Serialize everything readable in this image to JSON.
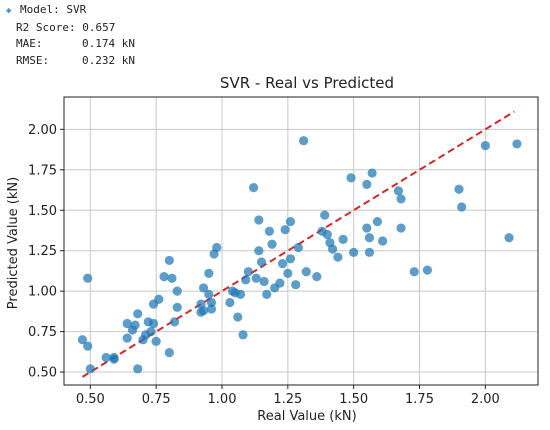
{
  "metrics": {
    "model_line": "Model: SVR",
    "r2_line": "R2 Score: 0.657",
    "mae_key": "MAE:",
    "mae_value": "0.174 kN",
    "rmse_key": "RMSE:",
    "rmse_value": "0.232 kN"
  },
  "colors": {
    "point": "#1f77b4",
    "reference_line": "#d62728",
    "grid": "#c8c8c8",
    "bullet": "#4a90d9"
  },
  "chart_data": {
    "type": "scatter",
    "title": "SVR - Real vs Predicted",
    "xlabel": "Real Value (kN)",
    "ylabel": "Predicted Value (kN)",
    "xlim": [
      0.4,
      2.2
    ],
    "ylim": [
      0.42,
      2.2
    ],
    "xticks": [
      "0.50",
      "0.75",
      "1.00",
      "1.25",
      "1.50",
      "1.75",
      "2.00"
    ],
    "yticks": [
      "0.50",
      "0.75",
      "1.00",
      "1.25",
      "1.50",
      "1.75",
      "2.00"
    ],
    "grid": true,
    "reference_line": {
      "style": "dashed",
      "from": [
        0.47,
        0.47
      ],
      "to": [
        2.11,
        2.11
      ]
    },
    "points": [
      [
        0.47,
        0.7
      ],
      [
        0.49,
        1.08
      ],
      [
        0.49,
        0.66
      ],
      [
        0.5,
        0.52
      ],
      [
        0.56,
        0.59
      ],
      [
        0.59,
        0.58
      ],
      [
        0.59,
        0.59
      ],
      [
        0.64,
        0.8
      ],
      [
        0.64,
        0.71
      ],
      [
        0.66,
        0.76
      ],
      [
        0.67,
        0.79
      ],
      [
        0.68,
        0.86
      ],
      [
        0.68,
        0.52
      ],
      [
        0.7,
        0.7
      ],
      [
        0.71,
        0.73
      ],
      [
        0.72,
        0.81
      ],
      [
        0.73,
        0.75
      ],
      [
        0.74,
        0.92
      ],
      [
        0.74,
        0.8
      ],
      [
        0.75,
        0.69
      ],
      [
        0.76,
        0.95
      ],
      [
        0.78,
        1.09
      ],
      [
        0.8,
        0.62
      ],
      [
        0.81,
        1.08
      ],
      [
        0.8,
        1.19
      ],
      [
        0.82,
        0.81
      ],
      [
        0.83,
        0.9
      ],
      [
        0.83,
        1.0
      ],
      [
        0.92,
        0.87
      ],
      [
        0.92,
        0.92
      ],
      [
        0.93,
        1.02
      ],
      [
        0.93,
        0.88
      ],
      [
        0.95,
        0.98
      ],
      [
        0.95,
        1.11
      ],
      [
        0.96,
        0.89
      ],
      [
        0.96,
        0.93
      ],
      [
        0.97,
        1.23
      ],
      [
        0.98,
        1.27
      ],
      [
        1.03,
        0.93
      ],
      [
        1.04,
        1.0
      ],
      [
        1.05,
        0.99
      ],
      [
        1.06,
        0.84
      ],
      [
        1.07,
        0.98
      ],
      [
        1.08,
        0.73
      ],
      [
        1.09,
        1.07
      ],
      [
        1.1,
        1.12
      ],
      [
        1.12,
        1.64
      ],
      [
        1.13,
        1.08
      ],
      [
        1.14,
        1.44
      ],
      [
        1.14,
        1.25
      ],
      [
        1.15,
        1.18
      ],
      [
        1.16,
        1.06
      ],
      [
        1.17,
        0.98
      ],
      [
        1.18,
        1.37
      ],
      [
        1.19,
        1.29
      ],
      [
        1.2,
        1.02
      ],
      [
        1.22,
        1.05
      ],
      [
        1.23,
        1.17
      ],
      [
        1.24,
        1.38
      ],
      [
        1.25,
        1.11
      ],
      [
        1.26,
        1.43
      ],
      [
        1.26,
        1.2
      ],
      [
        1.28,
        1.04
      ],
      [
        1.29,
        1.27
      ],
      [
        1.31,
        1.93
      ],
      [
        1.32,
        1.12
      ],
      [
        1.36,
        1.09
      ],
      [
        1.38,
        1.37
      ],
      [
        1.39,
        1.47
      ],
      [
        1.4,
        1.35
      ],
      [
        1.41,
        1.3
      ],
      [
        1.42,
        1.26
      ],
      [
        1.44,
        1.21
      ],
      [
        1.46,
        1.32
      ],
      [
        1.49,
        1.7
      ],
      [
        1.5,
        1.24
      ],
      [
        1.55,
        1.66
      ],
      [
        1.55,
        1.39
      ],
      [
        1.56,
        1.33
      ],
      [
        1.56,
        1.24
      ],
      [
        1.57,
        1.73
      ],
      [
        1.59,
        1.43
      ],
      [
        1.61,
        1.31
      ],
      [
        1.67,
        1.62
      ],
      [
        1.68,
        1.57
      ],
      [
        1.68,
        1.39
      ],
      [
        1.73,
        1.12
      ],
      [
        1.78,
        1.13
      ],
      [
        1.9,
        1.63
      ],
      [
        1.91,
        1.52
      ],
      [
        2.0,
        1.9
      ],
      [
        2.09,
        1.33
      ],
      [
        2.12,
        1.91
      ]
    ]
  }
}
